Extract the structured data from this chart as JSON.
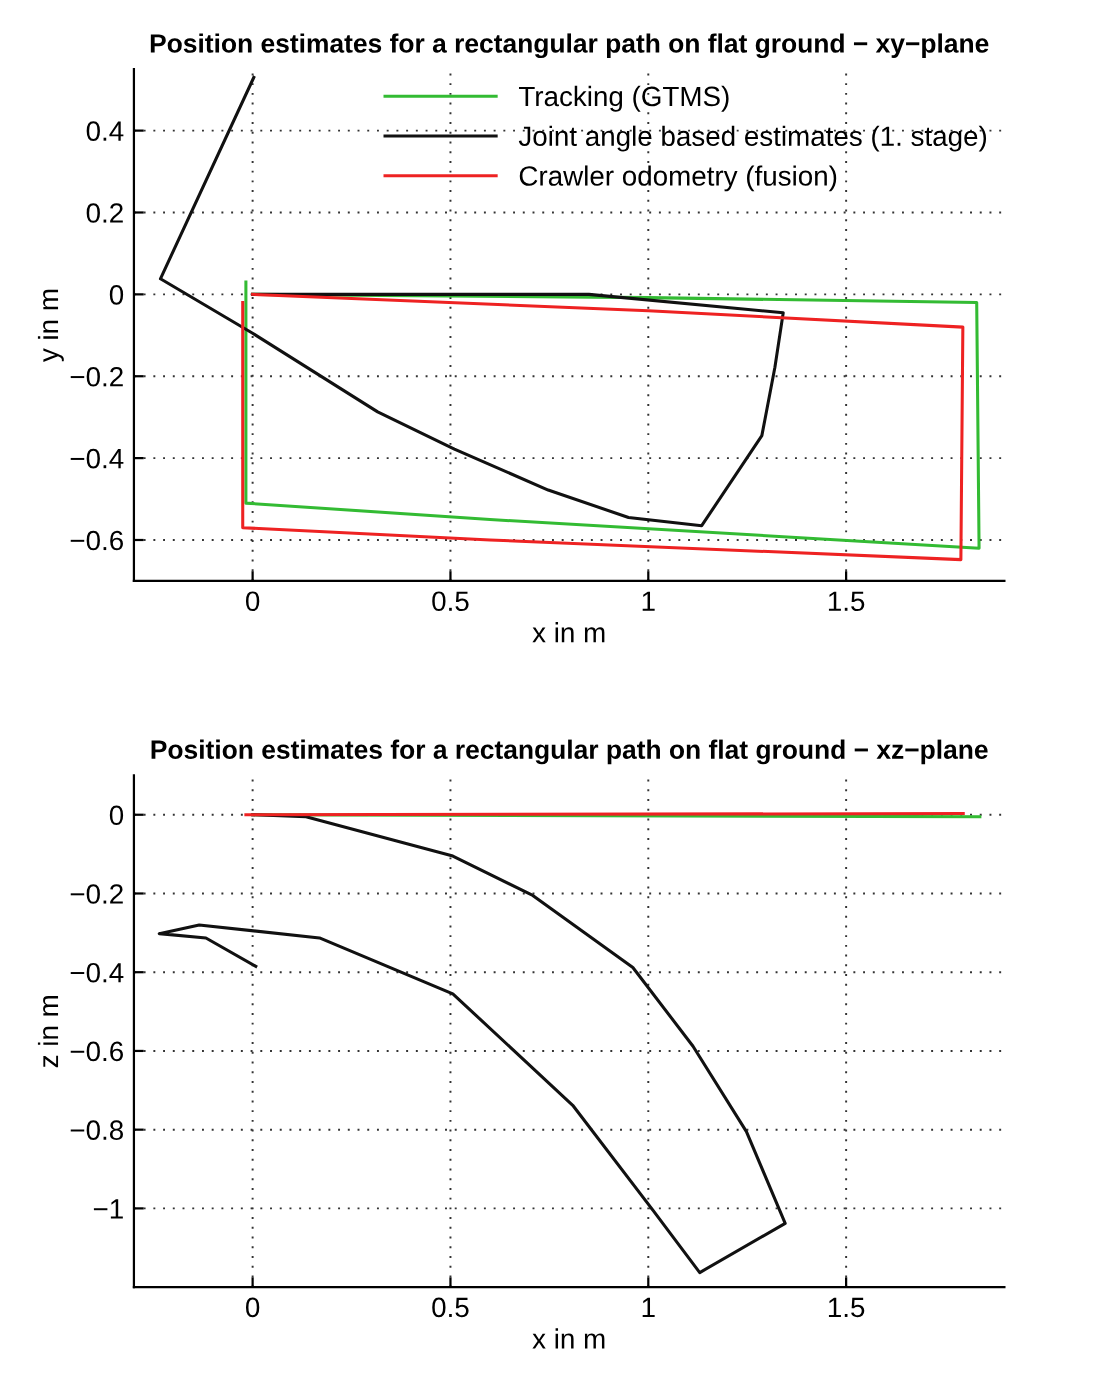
{
  "chart_data": [
    {
      "type": "line",
      "title": "Position estimates for a rectangular path on flat ground − xy−plane",
      "xlabel": "x in m",
      "ylabel": "y in m",
      "xlim": [
        -0.3,
        1.9
      ],
      "ylim": [
        -0.7,
        0.55
      ],
      "xticks": [
        0,
        0.5,
        1,
        1.5
      ],
      "yticks": [
        {
          "value": -0.6,
          "label": "−0.6"
        },
        {
          "value": -0.4,
          "label": "−0.4"
        },
        {
          "value": -0.2,
          "label": "−0.2"
        },
        0,
        0.2,
        0.4
      ],
      "grid": true,
      "legend": "top right",
      "marker": "none",
      "line_style": "solid",
      "series": [
        {
          "name": "Tracking (GTMS)",
          "color": "#33bb33",
          "x": [
            -0.017,
            -0.017,
            0.6,
            1.836,
            1.83,
            1.0,
            0.0
          ],
          "values": [
            0.03,
            -0.51,
            -0.55,
            -0.62,
            -0.02,
            -0.008,
            0.0
          ]
        },
        {
          "name": "Joint angle based estimates (1. stage)",
          "color": "#111111",
          "x": [
            0.0,
            0.85,
            1.341,
            1.32,
            1.287,
            1.135,
            0.95,
            0.747,
            0.51,
            0.316,
            0.0,
            -0.233,
            0.003
          ],
          "values": [
            0.0,
            0.0,
            -0.045,
            -0.178,
            -0.345,
            -0.565,
            -0.545,
            -0.478,
            -0.378,
            -0.287,
            -0.095,
            0.038,
            0.53
          ]
        },
        {
          "name": "Crawler odometry (fusion)",
          "color": "#ee2222",
          "x": [
            -0.025,
            -0.025,
            0.6,
            1.79,
            1.795,
            1.0,
            0.0
          ],
          "values": [
            -0.02,
            -0.57,
            -0.6,
            -0.648,
            -0.08,
            -0.04,
            0.0
          ]
        }
      ]
    },
    {
      "type": "line",
      "title": "Position estimates for a rectangular path on flat ground − xz−plane",
      "xlabel": "x in m",
      "ylabel": "z in m",
      "xlim": [
        -0.3,
        1.9
      ],
      "ylim": [
        -1.2,
        0.1
      ],
      "xticks": [
        0,
        0.5,
        1,
        1.5
      ],
      "yticks": [
        {
          "value": -1,
          "label": "−1"
        },
        {
          "value": -0.8,
          "label": "−0.8"
        },
        {
          "value": -0.6,
          "label": "−0.6"
        },
        {
          "value": -0.4,
          "label": "−0.4"
        },
        {
          "value": -0.2,
          "label": "−0.2"
        },
        0
      ],
      "grid": true,
      "marker": "none",
      "line_style": "solid",
      "series": [
        {
          "color": "#33bb33",
          "x": [
            0.0,
            1.838
          ],
          "values": [
            0.0,
            -0.005
          ]
        },
        {
          "color": "#111111",
          "x": [
            0.0,
            0.135,
            0.506,
            0.708,
            0.961,
            1.113,
            1.248,
            1.346,
            1.13,
            1.012,
            0.809,
            0.506,
            0.169,
            -0.135,
            -0.236,
            -0.118,
            0.008
          ],
          "values": [
            0.0,
            -0.005,
            -0.105,
            -0.205,
            -0.388,
            -0.588,
            -0.805,
            -1.038,
            -1.163,
            -1.005,
            -0.738,
            -0.455,
            -0.313,
            -0.28,
            -0.302,
            -0.313,
            -0.385
          ]
        },
        {
          "color": "#ee2222",
          "x": [
            -0.017,
            1.796
          ],
          "values": [
            0.0,
            0.003
          ]
        }
      ]
    }
  ]
}
